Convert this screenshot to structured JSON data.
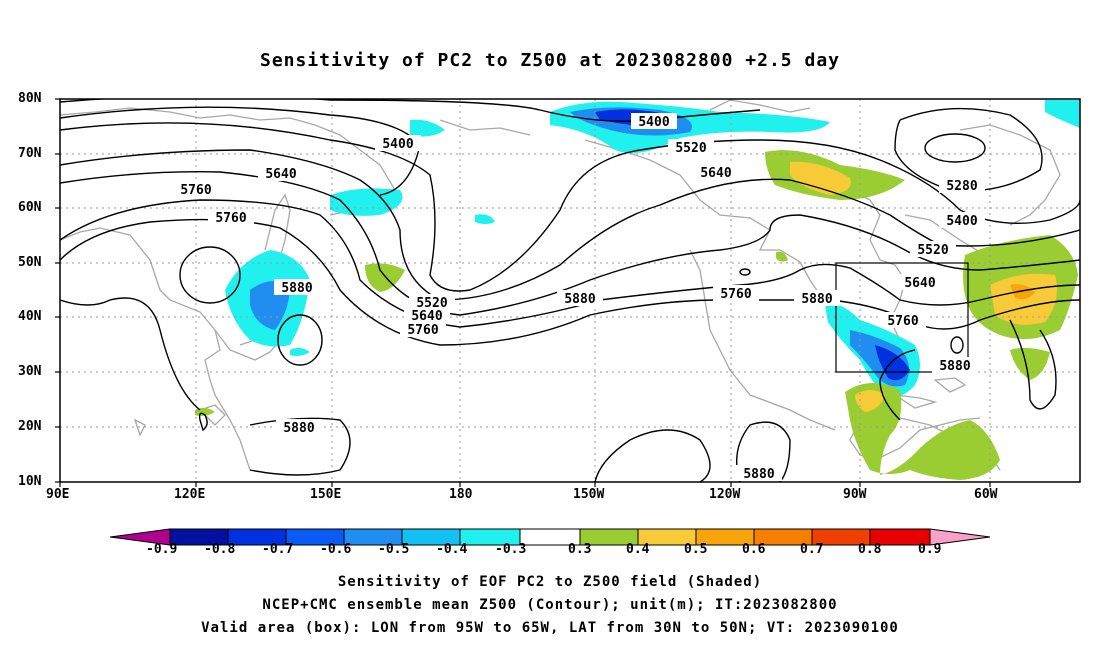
{
  "title": "Sensitivity of PC2 to Z500 at 2023082800 +2.5 day",
  "lat_labels": [
    "80N",
    "70N",
    "60N",
    "50N",
    "40N",
    "30N",
    "20N",
    "10N"
  ],
  "lon_labels": [
    "90E",
    "120E",
    "150E",
    "180",
    "150W",
    "120W",
    "90W",
    "60W"
  ],
  "contour_labels": [
    "5400",
    "5400",
    "5520",
    "5640",
    "5640",
    "5760",
    "5760",
    "5280",
    "5400",
    "5520",
    "5640",
    "5760",
    "5880",
    "5880",
    "5880",
    "5520",
    "5640",
    "5760",
    "5880",
    "5880",
    "5760",
    "5880"
  ],
  "colorbar": {
    "labels": [
      "-0.9",
      "-0.8",
      "-0.7",
      "-0.6",
      "-0.5",
      "-0.4",
      "-0.3",
      "0.3",
      "0.4",
      "0.5",
      "0.6",
      "0.7",
      "0.8",
      "0.9"
    ],
    "colors": [
      "#b0008f",
      "#0010a0",
      "#0030e0",
      "#0a5af5",
      "#1f8ef0",
      "#12c0f2",
      "#20f0ee",
      "#ffffff",
      "#9acd32",
      "#f7ca37",
      "#f8a50c",
      "#f67f00",
      "#f04000",
      "#e80000",
      "#f8a0c8"
    ]
  },
  "caption": [
    "Sensitivity of EOF PC2 to Z500 field (Shaded)",
    "NCEP+CMC ensemble mean Z500 (Contour); unit(m); IT:2023082800",
    "Valid area (box): LON from 95W to 65W, LAT from 30N to 50N; VT: 2023090100"
  ],
  "valid_area": {
    "lon": [
      "95W",
      "65W"
    ],
    "lat": [
      "30N",
      "50N"
    ]
  }
}
